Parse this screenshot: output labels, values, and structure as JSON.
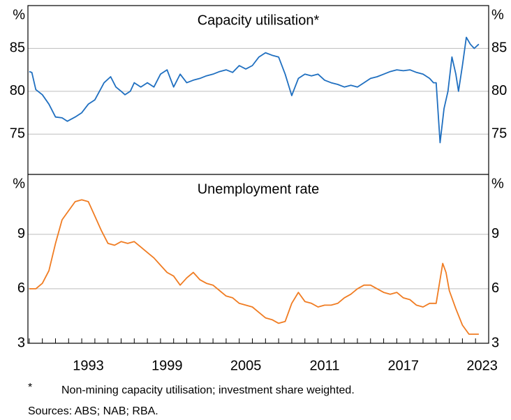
{
  "chart_data": [
    {
      "type": "line",
      "subtitle": "Capacity utilisation*",
      "y_unit": "%",
      "xlim": [
        1988.9,
        2024.0
      ],
      "ylim": [
        70.3,
        90
      ],
      "yticks": [
        75,
        80,
        85
      ],
      "grid": true,
      "series": [
        {
          "name": "Capacity utilisation",
          "color": "#1f6fc0",
          "x": [
            1989.0,
            1989.2,
            1989.5,
            1990.0,
            1990.5,
            1991.0,
            1991.5,
            1991.9,
            1992.5,
            1993.0,
            1993.5,
            1994.0,
            1994.7,
            1995.2,
            1995.6,
            1996.0,
            1996.3,
            1996.7,
            1997.0,
            1997.5,
            1998.0,
            1998.5,
            1999.0,
            1999.5,
            2000.0,
            2000.5,
            2001.0,
            2001.5,
            2002.0,
            2002.5,
            2003.0,
            2003.5,
            2004.0,
            2004.5,
            2005.0,
            2005.5,
            2006.0,
            2006.5,
            2007.0,
            2007.5,
            2008.0,
            2008.5,
            2009.0,
            2009.5,
            2010.0,
            2010.5,
            2011.0,
            2011.5,
            2012.0,
            2012.5,
            2013.0,
            2013.5,
            2014.0,
            2014.5,
            2015.0,
            2015.5,
            2016.0,
            2016.5,
            2017.0,
            2017.5,
            2018.0,
            2018.5,
            2019.0,
            2019.5,
            2019.8,
            2020.0,
            2020.3,
            2020.6,
            2020.9,
            2021.2,
            2021.5,
            2021.7,
            2022.0,
            2022.3,
            2022.6,
            2022.9,
            2023.25
          ],
          "values": [
            82.3,
            82.2,
            80.2,
            79.6,
            78.5,
            77.0,
            76.9,
            76.5,
            77.0,
            77.5,
            78.5,
            79.0,
            81.0,
            81.7,
            80.5,
            80.0,
            79.6,
            80.0,
            81.0,
            80.5,
            81.0,
            80.5,
            82.0,
            82.5,
            80.5,
            82.0,
            81.0,
            81.3,
            81.5,
            81.8,
            82.0,
            82.3,
            82.5,
            82.2,
            83.0,
            82.6,
            83.0,
            84.0,
            84.5,
            84.2,
            84.0,
            82.0,
            79.5,
            81.5,
            82.0,
            81.8,
            82.0,
            81.3,
            81.0,
            80.8,
            80.5,
            80.7,
            80.5,
            81.0,
            81.5,
            81.7,
            82.0,
            82.3,
            82.5,
            82.4,
            82.5,
            82.2,
            82.0,
            81.5,
            81.0,
            81.0,
            74.0,
            78.0,
            80.0,
            84.0,
            82.0,
            80.0,
            83.0,
            86.3,
            85.5,
            85.0,
            85.5
          ]
        }
      ]
    },
    {
      "type": "line",
      "subtitle": "Unemployment rate",
      "y_unit": "%",
      "xlim": [
        1988.9,
        2024.0
      ],
      "ylim": [
        3,
        12.3
      ],
      "yticks": [
        3,
        6,
        9
      ],
      "grid": true,
      "xticks": [
        1993,
        1999,
        2005,
        2011,
        2017,
        2023
      ],
      "xminor": [
        1989,
        1990,
        1991,
        1992,
        1993,
        1994,
        1995,
        1996,
        1997,
        1998,
        1999,
        2000,
        2001,
        2002,
        2003,
        2004,
        2005,
        2006,
        2007,
        2008,
        2009,
        2010,
        2011,
        2012,
        2013,
        2014,
        2015,
        2016,
        2017,
        2018,
        2019,
        2020,
        2021,
        2022,
        2023
      ],
      "series": [
        {
          "name": "Unemployment rate",
          "color": "#f07c22",
          "x": [
            1989.0,
            1989.5,
            1990.0,
            1990.5,
            1991.0,
            1991.5,
            1992.0,
            1992.5,
            1993.0,
            1993.5,
            1994.0,
            1994.5,
            1995.0,
            1995.5,
            1996.0,
            1996.5,
            1997.0,
            1997.5,
            1998.0,
            1998.5,
            1999.0,
            1999.5,
            2000.0,
            2000.5,
            2001.0,
            2001.5,
            2002.0,
            2002.5,
            2003.0,
            2003.5,
            2004.0,
            2004.5,
            2005.0,
            2005.5,
            2006.0,
            2006.5,
            2007.0,
            2007.5,
            2008.0,
            2008.5,
            2009.0,
            2009.5,
            2010.0,
            2010.5,
            2011.0,
            2011.5,
            2012.0,
            2012.5,
            2013.0,
            2013.5,
            2014.0,
            2014.5,
            2015.0,
            2015.5,
            2016.0,
            2016.5,
            2017.0,
            2017.5,
            2018.0,
            2018.5,
            2019.0,
            2019.5,
            2020.0,
            2020.5,
            2020.75,
            2021.0,
            2021.5,
            2022.0,
            2022.5,
            2023.25
          ],
          "values": [
            6.0,
            6.0,
            6.3,
            7.0,
            8.5,
            9.8,
            10.3,
            10.8,
            10.9,
            10.8,
            10.0,
            9.2,
            8.5,
            8.4,
            8.6,
            8.5,
            8.6,
            8.3,
            8.0,
            7.7,
            7.3,
            6.9,
            6.7,
            6.2,
            6.6,
            6.9,
            6.5,
            6.3,
            6.2,
            5.9,
            5.6,
            5.5,
            5.2,
            5.1,
            5.0,
            4.7,
            4.4,
            4.3,
            4.1,
            4.2,
            5.2,
            5.8,
            5.3,
            5.2,
            5.0,
            5.1,
            5.1,
            5.2,
            5.5,
            5.7,
            6.0,
            6.2,
            6.2,
            6.0,
            5.8,
            5.7,
            5.8,
            5.5,
            5.4,
            5.1,
            5.0,
            5.2,
            5.2,
            7.4,
            6.9,
            5.9,
            4.9,
            4.0,
            3.5,
            3.5
          ]
        }
      ]
    }
  ],
  "notes": {
    "marker": "*",
    "footnote": "Non-mining capacity utilisation; investment share weighted.",
    "sources": "Sources: ABS; NAB; RBA."
  }
}
